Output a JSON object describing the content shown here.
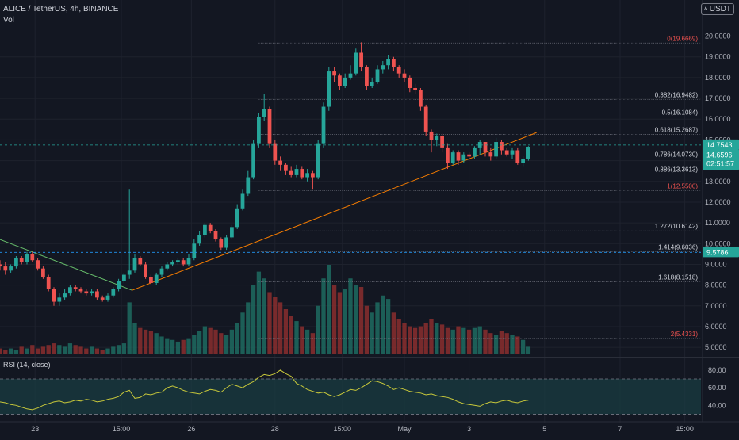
{
  "header": {
    "symbol_line": "ALICE / TetherUS, 4h, BINANCE",
    "volume_label": "Vol",
    "currency": "USDT"
  },
  "rsi": {
    "label": "RSI (14, close)",
    "ticks": [
      "80.00",
      "60.00",
      "40.00"
    ],
    "tick_values": [
      80,
      60,
      40
    ],
    "upper_band": 70,
    "lower_band": 30,
    "ylim": [
      25,
      88
    ],
    "values": [
      44,
      43,
      41,
      40,
      38,
      36,
      35,
      37,
      40,
      42,
      44,
      45,
      43,
      44,
      46,
      45,
      47,
      46,
      44,
      45,
      47,
      48,
      50,
      55,
      57,
      48,
      49,
      53,
      52,
      54,
      55,
      60,
      62,
      60,
      57,
      55,
      54,
      53,
      56,
      58,
      57,
      55,
      60,
      64,
      62,
      60,
      64,
      67,
      72,
      75,
      74,
      76,
      80,
      76,
      73,
      65,
      62,
      58,
      56,
      54,
      55,
      52,
      50,
      52,
      55,
      58,
      57,
      60,
      64,
      68,
      67,
      65,
      62,
      58,
      60,
      58,
      56,
      55,
      54,
      52,
      53,
      51,
      50,
      49,
      47,
      44,
      42,
      41,
      40,
      39,
      42,
      44,
      43,
      45,
      46,
      44,
      43,
      45,
      46
    ]
  },
  "price_axis": {
    "ticks": [
      "20.0000",
      "19.0000",
      "18.0000",
      "17.0000",
      "16.0000",
      "15.0000",
      "14.0000",
      "13.0000",
      "12.0000",
      "11.0000",
      "10.0000",
      "9.0000",
      "8.0000",
      "7.0000",
      "6.0000",
      "5.0000"
    ],
    "tick_values": [
      20,
      19,
      18,
      17,
      16,
      15,
      14,
      13,
      12,
      11,
      10,
      9,
      8,
      7,
      6,
      5
    ],
    "price_tag": "14.7543",
    "price_tag_value": 14.7543,
    "last_price": "14.6596",
    "last_price_value": 14.6596,
    "countdown": "02:51:57",
    "line_tag": "9.5786",
    "line_tag_value": 9.5786
  },
  "time_axis": {
    "labels": [
      "23",
      "15:00",
      "26",
      "28",
      "15:00",
      "May",
      "3",
      "5",
      "7",
      "15:00"
    ],
    "positions": [
      6.5,
      22.5,
      35.5,
      51,
      63.5,
      75,
      87,
      101,
      115,
      127
    ]
  },
  "colors": {
    "up": "#26a69a",
    "down": "#ef5350",
    "up_vol": "#1f6b60",
    "down_vol": "#8b2e2e",
    "trend_orange": "#f57c00",
    "trend_green": "#66bb6a",
    "rsi_line": "#c7c73a",
    "fib_line": "#787b86",
    "price_tag_bg": "#26a69a",
    "line_tag_bg": "#2196f3"
  },
  "fib_levels": [
    {
      "label": "0(19.6669)",
      "value": 19.6669,
      "color": "#ef5350"
    },
    {
      "label": "0.382(16.9482)",
      "value": 16.9482,
      "color": "#d1d4dc"
    },
    {
      "label": "0.5(16.1084)",
      "value": 16.1084,
      "color": "#d1d4dc"
    },
    {
      "label": "0.618(15.2687)",
      "value": 15.2687,
      "color": "#d1d4dc"
    },
    {
      "label": "0.786(14.0730)",
      "value": 14.073,
      "color": "#d1d4dc"
    },
    {
      "label": "0.886(13.3613)",
      "value": 13.3613,
      "color": "#d1d4dc"
    },
    {
      "label": "1(12.5500)",
      "value": 12.55,
      "color": "#ef5350"
    },
    {
      "label": "1.272(10.6142)",
      "value": 10.6142,
      "color": "#d1d4dc"
    },
    {
      "label": "1.414(9.6036)",
      "value": 9.6036,
      "color": "#d1d4dc"
    },
    {
      "label": "1.618(8.1518)",
      "value": 8.1518,
      "color": "#d1d4dc"
    },
    {
      "label": "2(5.4331)",
      "value": 5.4331,
      "color": "#ef5350"
    }
  ],
  "chart_data": {
    "type": "candlestick",
    "title": "ALICE / TetherUS, 4h, BINANCE",
    "xlabel": "",
    "ylabel": "",
    "ylim": [
      4.7,
      20.9
    ],
    "x": [
      0,
      1,
      2,
      3,
      4,
      5,
      6,
      7,
      8,
      9,
      10,
      11,
      12,
      13,
      14,
      15,
      16,
      17,
      18,
      19,
      20,
      21,
      22,
      23,
      24,
      25,
      26,
      27,
      28,
      29,
      30,
      31,
      32,
      33,
      34,
      35,
      36,
      37,
      38,
      39,
      40,
      41,
      42,
      43,
      44,
      45,
      46,
      47,
      48,
      49,
      50,
      51,
      52,
      53,
      54,
      55,
      56,
      57,
      58,
      59,
      60,
      61,
      62,
      63,
      64,
      65,
      66,
      67,
      68,
      69,
      70,
      71,
      72,
      73,
      74,
      75,
      76,
      77,
      78,
      79,
      80,
      81,
      82,
      83,
      84,
      85,
      86,
      87,
      88,
      89,
      90,
      91,
      92,
      93,
      94,
      95,
      96,
      97,
      98
    ],
    "open": [
      9.0,
      8.9,
      8.7,
      8.9,
      9.3,
      9.1,
      9.5,
      9.2,
      8.8,
      8.4,
      7.8,
      7.2,
      7.4,
      7.6,
      7.9,
      7.8,
      7.7,
      7.6,
      7.7,
      7.4,
      7.3,
      7.5,
      7.8,
      8.2,
      8.5,
      8.7,
      9.3,
      9.0,
      8.4,
      8.1,
      8.5,
      8.8,
      9.0,
      9.1,
      9.2,
      9.0,
      9.3,
      10.0,
      10.4,
      10.9,
      10.6,
      10.2,
      9.8,
      10.3,
      10.8,
      11.7,
      12.4,
      13.2,
      14.8,
      16.1,
      16.5,
      14.8,
      14.0,
      13.8,
      13.5,
      13.3,
      13.6,
      13.2,
      13.4,
      13.2,
      14.8,
      16.6,
      18.3,
      18.1,
      17.6,
      18.0,
      18.2,
      19.2,
      18.5,
      17.6,
      17.8,
      18.4,
      18.6,
      18.9,
      18.5,
      18.2,
      18.0,
      17.5,
      17.4,
      16.6,
      15.4,
      15.0,
      15.2,
      14.6,
      13.9,
      14.4,
      14.0,
      14.3,
      14.2,
      14.6,
      14.9,
      14.4,
      14.2,
      14.9,
      14.5,
      14.3,
      14.5,
      13.9,
      14.1
    ],
    "close": [
      8.9,
      8.7,
      8.9,
      9.3,
      9.1,
      9.5,
      9.2,
      8.8,
      8.4,
      7.8,
      7.2,
      7.4,
      7.6,
      7.9,
      7.8,
      7.7,
      7.6,
      7.7,
      7.4,
      7.3,
      7.5,
      7.8,
      8.2,
      8.5,
      8.7,
      9.3,
      9.0,
      8.4,
      8.1,
      8.5,
      8.8,
      9.0,
      9.1,
      9.2,
      9.0,
      9.3,
      10.0,
      10.4,
      10.9,
      10.6,
      10.2,
      9.8,
      10.3,
      10.8,
      11.7,
      12.4,
      13.2,
      14.8,
      16.1,
      16.5,
      14.8,
      14.0,
      13.8,
      13.5,
      13.3,
      13.6,
      13.2,
      13.4,
      13.2,
      14.8,
      16.6,
      18.3,
      18.1,
      17.6,
      18.0,
      18.2,
      19.2,
      18.5,
      17.6,
      17.8,
      18.4,
      18.6,
      18.9,
      18.5,
      18.2,
      18.0,
      17.5,
      17.4,
      16.6,
      15.4,
      15.0,
      15.2,
      14.6,
      13.9,
      14.4,
      14.0,
      14.3,
      14.2,
      14.6,
      14.9,
      14.4,
      14.2,
      14.9,
      14.5,
      14.3,
      14.5,
      13.9,
      14.1,
      14.66
    ],
    "high": [
      9.2,
      9.1,
      9.0,
      9.4,
      9.4,
      9.6,
      9.6,
      9.3,
      8.9,
      8.5,
      7.9,
      7.6,
      7.8,
      8.0,
      8.0,
      7.9,
      7.8,
      7.8,
      7.8,
      7.5,
      7.6,
      7.9,
      8.3,
      8.6,
      12.6,
      9.5,
      9.4,
      9.1,
      8.5,
      8.6,
      8.9,
      9.1,
      9.2,
      9.3,
      9.3,
      9.5,
      10.2,
      10.6,
      11.0,
      11.0,
      10.7,
      10.3,
      10.4,
      10.9,
      11.9,
      12.6,
      13.5,
      15.0,
      16.3,
      17.2,
      16.6,
      15.0,
      14.2,
      13.9,
      13.7,
      13.8,
      13.7,
      13.6,
      13.5,
      15.0,
      16.8,
      18.5,
      18.5,
      18.2,
      18.2,
      18.6,
      19.4,
      19.7,
      18.6,
      18.0,
      18.6,
      18.8,
      19.1,
      19.0,
      18.6,
      18.4,
      18.1,
      17.7,
      17.5,
      16.7,
      15.5,
      15.3,
      15.3,
      14.8,
      14.5,
      14.5,
      14.4,
      14.4,
      14.7,
      15.0,
      14.9,
      14.6,
      15.1,
      15.0,
      14.6,
      14.6,
      14.6,
      14.2,
      14.7
    ],
    "low": [
      8.7,
      8.5,
      8.6,
      8.8,
      9.0,
      9.0,
      9.1,
      8.7,
      8.3,
      7.7,
      7.0,
      7.0,
      7.3,
      7.5,
      7.7,
      7.6,
      7.5,
      7.5,
      7.3,
      7.2,
      7.2,
      7.4,
      7.7,
      8.1,
      8.3,
      8.6,
      8.9,
      8.3,
      8.0,
      8.0,
      8.4,
      8.7,
      8.9,
      9.0,
      8.9,
      8.9,
      9.2,
      9.9,
      10.3,
      10.5,
      10.1,
      9.7,
      9.7,
      10.2,
      10.7,
      11.6,
      12.3,
      13.1,
      14.6,
      15.9,
      14.6,
      13.8,
      13.5,
      13.3,
      13.2,
      13.2,
      13.1,
      13.0,
      12.6,
      13.1,
      14.6,
      16.4,
      17.8,
      17.4,
      17.5,
      17.9,
      18.1,
      18.3,
      17.4,
      17.5,
      17.7,
      18.2,
      18.4,
      18.3,
      18.0,
      17.8,
      17.3,
      17.2,
      16.4,
      15.2,
      14.4,
      14.7,
      14.4,
      13.6,
      13.8,
      13.8,
      13.9,
      14.0,
      14.1,
      14.3,
      14.2,
      14.0,
      14.1,
      14.3,
      14.2,
      14.1,
      13.8,
      13.7,
      14.0
    ],
    "volume": [
      3,
      2,
      3,
      2,
      4,
      3,
      5,
      3,
      4,
      5,
      6,
      5,
      4,
      6,
      5,
      4,
      3,
      4,
      3,
      2,
      3,
      4,
      5,
      6,
      30,
      18,
      15,
      14,
      13,
      12,
      10,
      9,
      8,
      7,
      8,
      9,
      11,
      13,
      16,
      15,
      14,
      12,
      11,
      14,
      18,
      24,
      30,
      40,
      48,
      44,
      36,
      33,
      30,
      26,
      22,
      19,
      16,
      14,
      12,
      28,
      44,
      52,
      40,
      36,
      38,
      44,
      40,
      39,
      28,
      24,
      30,
      34,
      32,
      24,
      20,
      18,
      16,
      15,
      16,
      18,
      20,
      18,
      17,
      15,
      14,
      16,
      15,
      14,
      15,
      16,
      14,
      12,
      11,
      13,
      12,
      11,
      10,
      8,
      4
    ],
    "xlim": [
      0,
      130
    ],
    "trendlines": [
      {
        "name": "",
        "color": "#f57c00",
        "points": [
          [
            24.5,
            7.75
          ],
          [
            99.5,
            15.35
          ]
        ]
      },
      {
        "name": "",
        "color": "#66bb6a",
        "points": [
          [
            0,
            10.2
          ],
          [
            24.5,
            7.75
          ]
        ]
      }
    ]
  }
}
